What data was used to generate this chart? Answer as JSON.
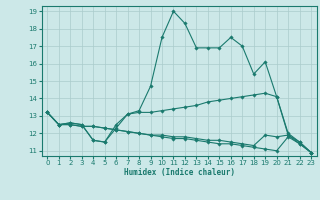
{
  "xlabel": "Humidex (Indice chaleur)",
  "xlim": [
    -0.5,
    23.5
  ],
  "ylim": [
    10.7,
    19.3
  ],
  "xticks": [
    0,
    1,
    2,
    3,
    4,
    5,
    6,
    7,
    8,
    9,
    10,
    11,
    12,
    13,
    14,
    15,
    16,
    17,
    18,
    19,
    20,
    21,
    22,
    23
  ],
  "yticks": [
    11,
    12,
    13,
    14,
    15,
    16,
    17,
    18,
    19
  ],
  "background_color": "#cce8e8",
  "line_color": "#1a7a6e",
  "grid_color": "#aacccc",
  "lines": [
    {
      "x": [
        0,
        1,
        2,
        3,
        4,
        5,
        6,
        7,
        8,
        9,
        10,
        11,
        12,
        13,
        14,
        15,
        16,
        17,
        18,
        19,
        20,
        21,
        22,
        23
      ],
      "y": [
        13.2,
        12.5,
        12.6,
        12.5,
        11.6,
        11.5,
        12.5,
        13.1,
        13.3,
        14.7,
        17.5,
        19.0,
        18.3,
        16.9,
        16.9,
        16.9,
        17.5,
        17.0,
        15.4,
        16.1,
        14.1,
        12.0,
        11.5,
        10.9
      ]
    },
    {
      "x": [
        0,
        1,
        2,
        3,
        4,
        5,
        6,
        7,
        8,
        9,
        10,
        11,
        12,
        13,
        14,
        15,
        16,
        17,
        18,
        19,
        20,
        21,
        22,
        23
      ],
      "y": [
        13.2,
        12.5,
        12.6,
        12.5,
        11.6,
        11.5,
        12.3,
        13.1,
        13.2,
        13.2,
        13.3,
        13.4,
        13.5,
        13.6,
        13.8,
        13.9,
        14.0,
        14.1,
        14.2,
        14.3,
        14.1,
        11.9,
        11.5,
        10.9
      ]
    },
    {
      "x": [
        0,
        1,
        2,
        3,
        4,
        5,
        6,
        7,
        8,
        9,
        10,
        11,
        12,
        13,
        14,
        15,
        16,
        17,
        18,
        19,
        20,
        21,
        22,
        23
      ],
      "y": [
        13.2,
        12.5,
        12.5,
        12.4,
        12.4,
        12.3,
        12.2,
        12.1,
        12.0,
        11.9,
        11.8,
        11.7,
        11.7,
        11.6,
        11.5,
        11.4,
        11.4,
        11.3,
        11.2,
        11.1,
        11.0,
        11.8,
        11.4,
        10.9
      ]
    },
    {
      "x": [
        0,
        1,
        2,
        3,
        4,
        5,
        6,
        7,
        8,
        9,
        10,
        11,
        12,
        13,
        14,
        15,
        16,
        17,
        18,
        19,
        20,
        21,
        22,
        23
      ],
      "y": [
        13.2,
        12.5,
        12.5,
        12.4,
        12.4,
        12.3,
        12.2,
        12.1,
        12.0,
        11.9,
        11.9,
        11.8,
        11.8,
        11.7,
        11.6,
        11.6,
        11.5,
        11.4,
        11.3,
        11.9,
        11.8,
        11.9,
        11.4,
        10.9
      ]
    }
  ]
}
